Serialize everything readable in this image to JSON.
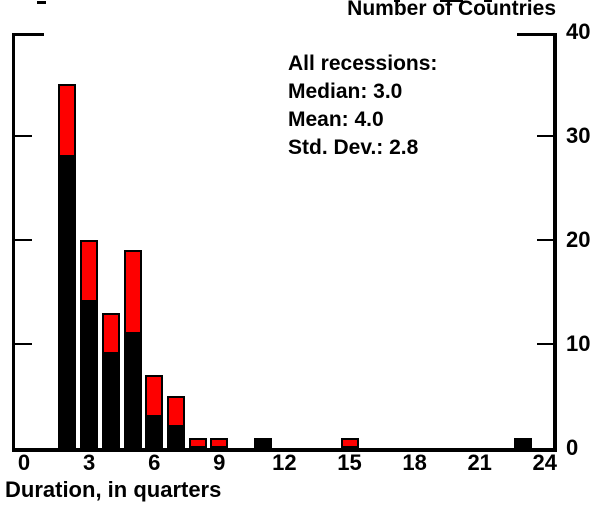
{
  "y_axis_title": "Number of Countries",
  "x_axis_title": "Duration, in quarters",
  "annotation": {
    "lines": [
      "All recessions:",
      "Median: 3.0",
      "Mean: 4.0",
      "Std. Dev.: 2.8"
    ]
  },
  "colors": {
    "bar_black": "#000000",
    "bar_red": "#fe0000",
    "axis": "#000000"
  },
  "chart_data": {
    "type": "bar",
    "stacked": true,
    "title": "",
    "xlabel": "Duration, in quarters",
    "ylabel": "Number of Countries",
    "x": [
      2,
      3,
      4,
      5,
      6,
      7,
      8,
      9,
      11,
      15,
      23
    ],
    "series": [
      {
        "name": "black",
        "color": "#000000",
        "values": [
          28,
          14,
          9,
          11,
          3,
          2,
          0,
          0,
          1,
          0,
          1
        ]
      },
      {
        "name": "red",
        "color": "#fe0000",
        "values": [
          7,
          6,
          4,
          8,
          4,
          3,
          1,
          1,
          0,
          1,
          0
        ]
      }
    ],
    "totals": [
      35,
      20,
      13,
      19,
      7,
      5,
      1,
      1,
      1,
      1,
      1
    ],
    "x_ticks": [
      0,
      3,
      6,
      9,
      12,
      15,
      18,
      21,
      24
    ],
    "y_ticks": [
      0,
      10,
      20,
      30,
      40
    ],
    "xlim": [
      -0.5,
      24.5
    ],
    "ylim": [
      0,
      40
    ],
    "grid": false,
    "legend": "none",
    "y_axis_labels_side": "right",
    "annotation": [
      "All recessions:",
      "Median: 3.0",
      "Mean: 4.0",
      "Std. Dev.: 2.8"
    ]
  }
}
